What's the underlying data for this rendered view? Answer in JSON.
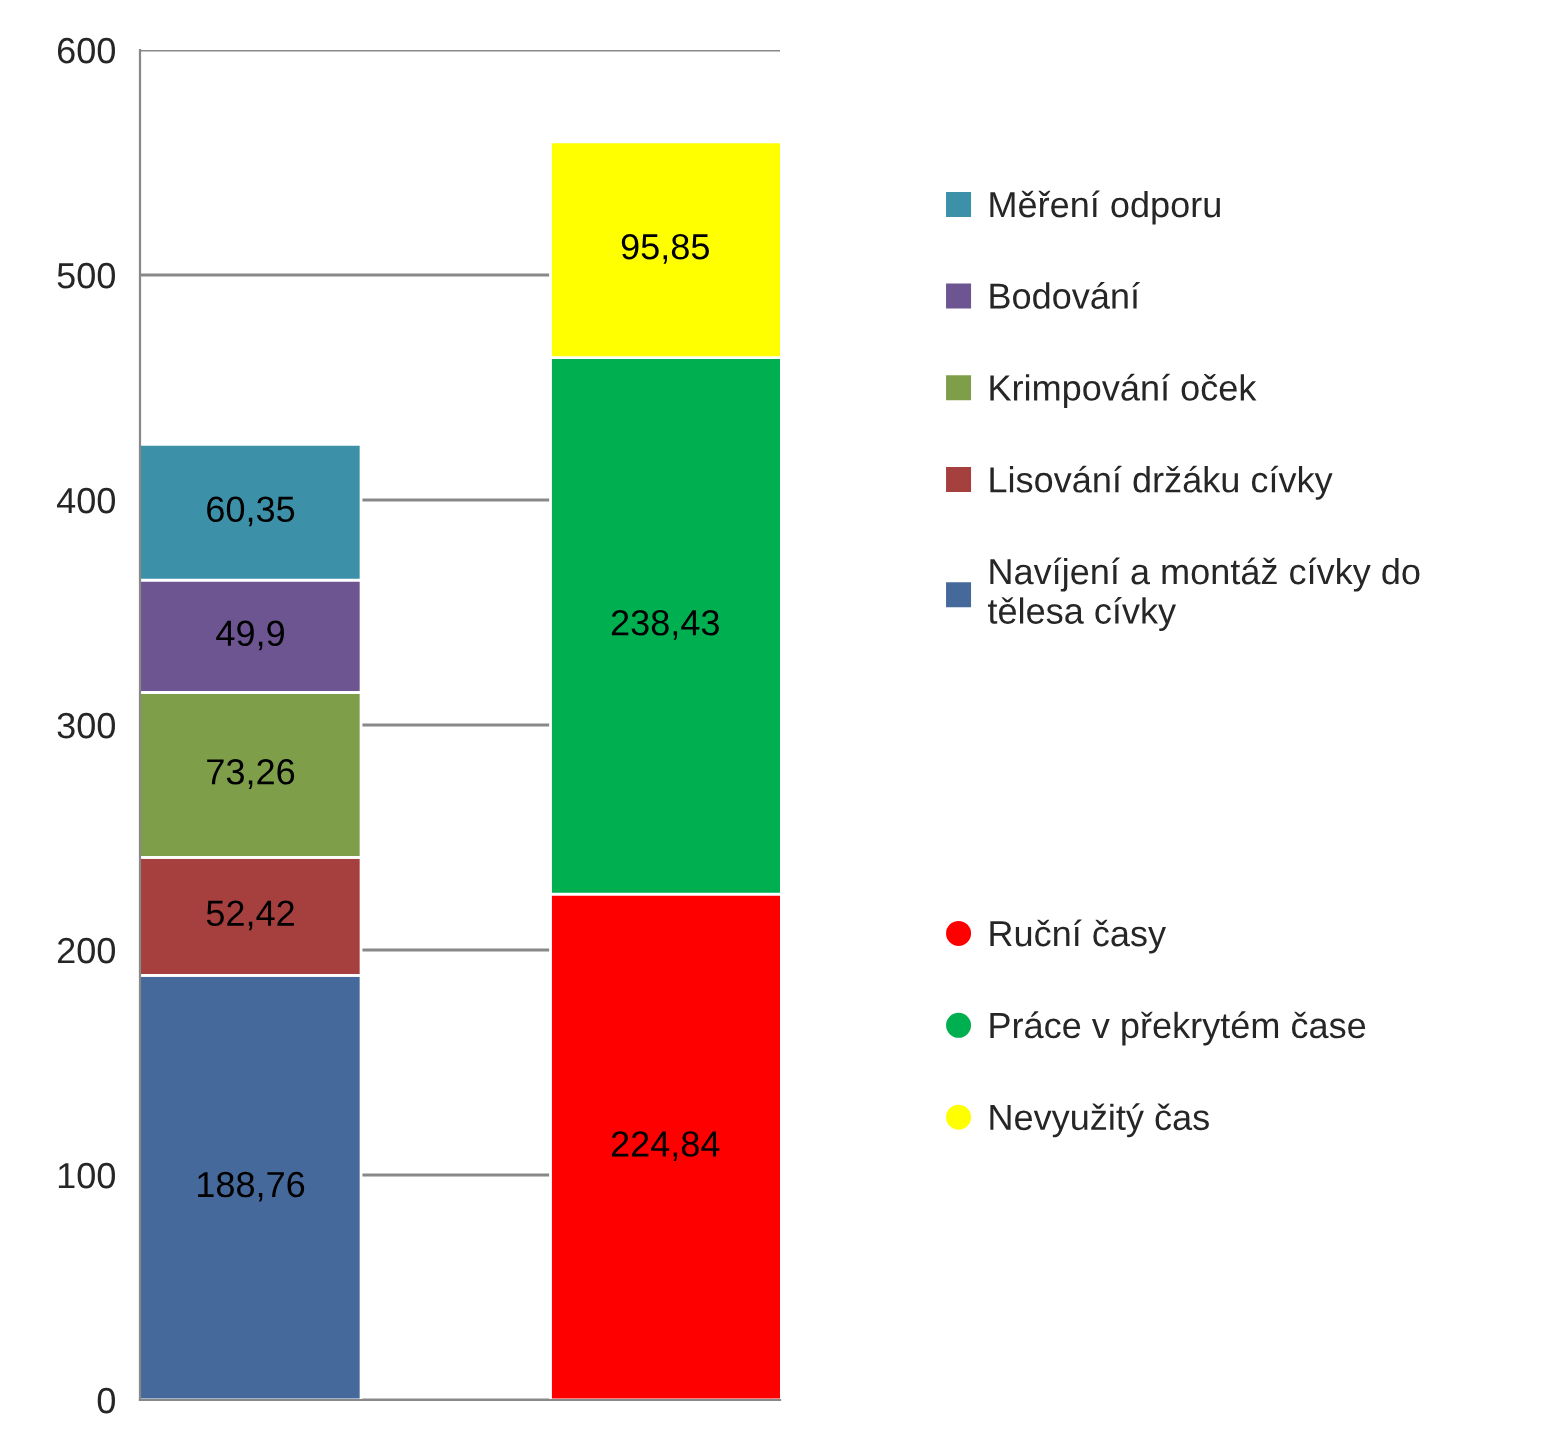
{
  "chart_data": {
    "type": "bar",
    "stacked": true,
    "categories": [
      null,
      null
    ],
    "series": [
      {
        "name": "Navíjení a montáž cívky do\ntělesa cívky",
        "color": "#45699a",
        "marker": "square",
        "values": [
          188.76,
          null
        ],
        "value_labels": [
          "188,76",
          null
        ]
      },
      {
        "name": "Lisování držáku cívky",
        "color": "#a5403e",
        "marker": "square",
        "values": [
          52.42,
          null
        ],
        "value_labels": [
          "52,42",
          null
        ]
      },
      {
        "name": "Krimpování oček",
        "color": "#7f9e4a",
        "marker": "square",
        "values": [
          73.26,
          null
        ],
        "value_labels": [
          "73,26",
          null
        ]
      },
      {
        "name": "Bodování",
        "color": "#6c5590",
        "marker": "square",
        "values": [
          49.9,
          null
        ],
        "value_labels": [
          "49,9",
          null
        ]
      },
      {
        "name": "Měření odporu",
        "color": "#3c90a8",
        "marker": "square",
        "values": [
          60.35,
          null
        ],
        "value_labels": [
          "60,35",
          null
        ]
      },
      {
        "name": "Ruční časy",
        "color": "#ff0000",
        "marker": "circle",
        "values": [
          null,
          224.84
        ],
        "value_labels": [
          null,
          "224,84"
        ]
      },
      {
        "name": "Práce v překrytém čase",
        "color": "#00b050",
        "marker": "circle",
        "values": [
          null,
          238.43
        ],
        "value_labels": [
          null,
          "238,43"
        ]
      },
      {
        "name": "Nevyužitý čas",
        "color": "#ffff00",
        "marker": "circle",
        "values": [
          null,
          95.85
        ],
        "value_labels": [
          null,
          "95,85"
        ]
      }
    ],
    "ylim": [
      0,
      600
    ],
    "yticks": [
      0,
      100,
      200,
      300,
      400,
      500,
      600
    ],
    "grid": "y",
    "legend": "right",
    "tick_labels": "y"
  }
}
